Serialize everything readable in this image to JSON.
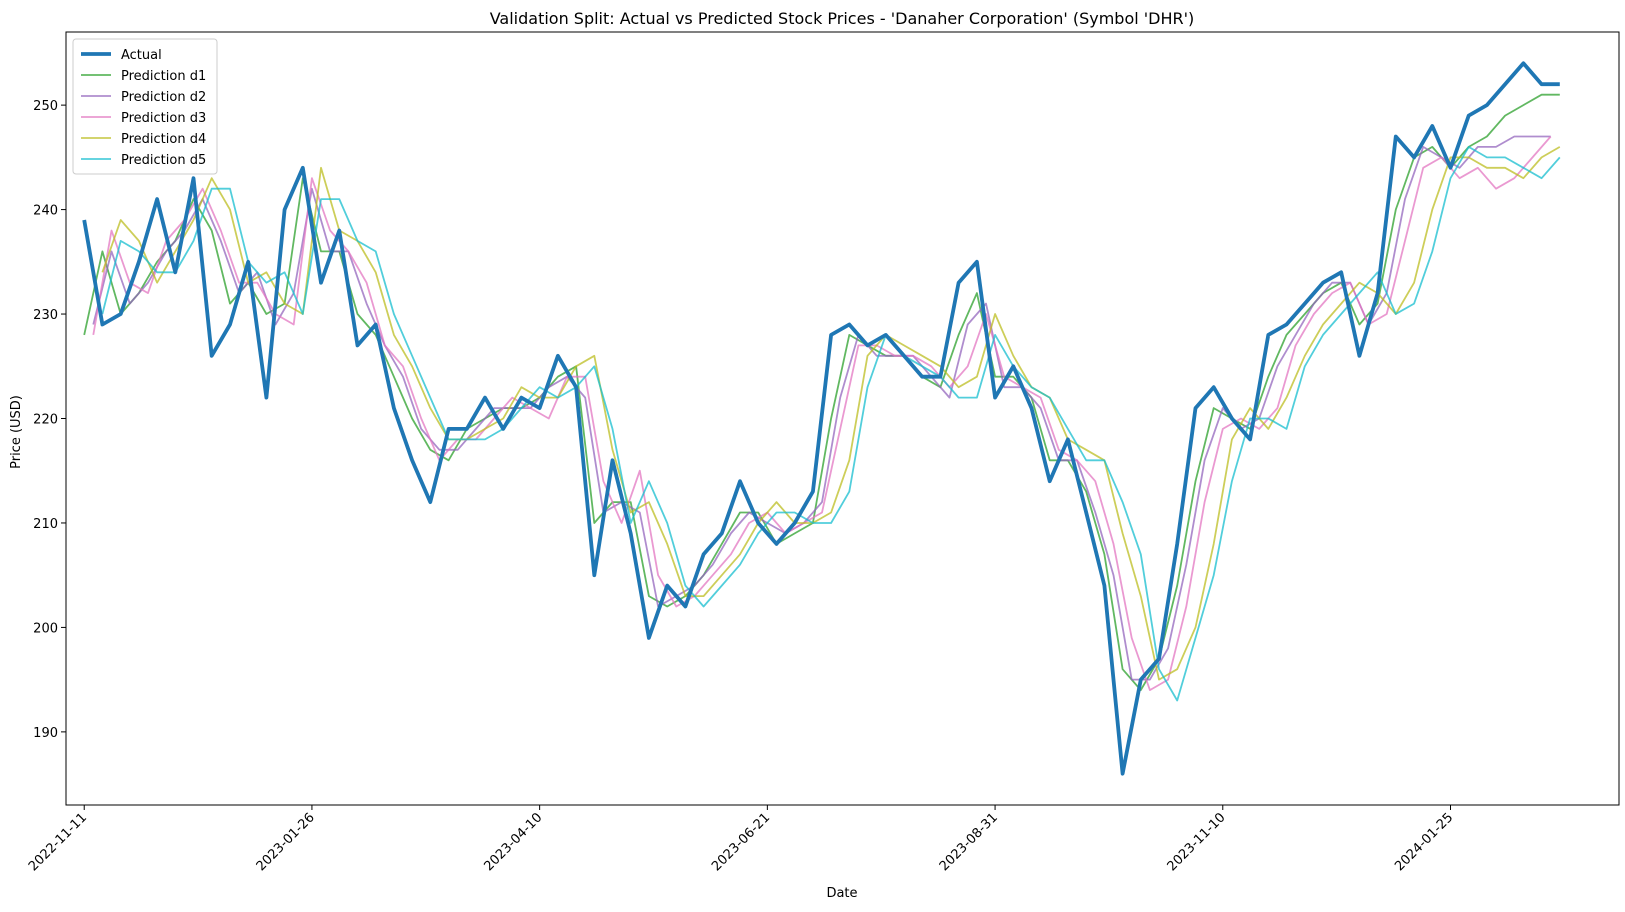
{
  "chart_data": {
    "type": "line",
    "title": "Validation Split: Actual vs Predicted Stock Prices - 'Danaher Corporation' (Symbol 'DHR')",
    "xlabel": "Date",
    "ylabel": "Price (USD)",
    "x_ticks": [
      "2022-11-11",
      "2023-01-26",
      "2023-04-10",
      "2023-06-21",
      "2023-08-31",
      "2023-11-10",
      "2024-01-25"
    ],
    "x_tick_index": [
      0,
      50,
      100,
      150,
      200,
      250,
      300
    ],
    "y_ticks": [
      190,
      200,
      210,
      220,
      230,
      240,
      250
    ],
    "xlim": [
      -4,
      337
    ],
    "ylim": [
      183,
      257
    ],
    "grid": false,
    "legend_position": "upper-left",
    "colors": {
      "Actual": "#1f77b4",
      "Prediction d1": "#2ca02c",
      "Prediction d2": "#9467bd",
      "Prediction d3": "#e377c2",
      "Prediction d4": "#bcbd22",
      "Prediction d5": "#17becf"
    },
    "series": [
      {
        "name": "Actual",
        "x": [
          0,
          4,
          8,
          12,
          16,
          20,
          24,
          28,
          32,
          36,
          40,
          44,
          48,
          52,
          56,
          60,
          64,
          68,
          72,
          76,
          80,
          84,
          88,
          92,
          96,
          100,
          104,
          108,
          112,
          116,
          120,
          124,
          128,
          132,
          136,
          140,
          144,
          148,
          152,
          156,
          160,
          164,
          168,
          172,
          176,
          180,
          184,
          188,
          192,
          196,
          200,
          204,
          208,
          212,
          216,
          220,
          224,
          228,
          232,
          236,
          240,
          244,
          248,
          252,
          256,
          260,
          264,
          268,
          272,
          276,
          280,
          284,
          288,
          292,
          296,
          300,
          304,
          308,
          312,
          316,
          320,
          324
        ],
        "y": [
          239,
          229,
          230,
          235,
          241,
          234,
          243,
          226,
          229,
          235,
          222,
          240,
          244,
          233,
          238,
          227,
          229,
          221,
          216,
          212,
          219,
          219,
          222,
          219,
          222,
          221,
          226,
          223,
          205,
          216,
          209,
          199,
          204,
          202,
          207,
          209,
          214,
          210,
          208,
          210,
          213,
          228,
          229,
          227,
          228,
          226,
          224,
          224,
          233,
          235,
          222,
          225,
          221,
          214,
          218,
          211,
          204,
          186,
          195,
          197,
          208,
          221,
          223,
          220,
          218,
          228,
          229,
          231,
          233,
          234,
          226,
          232,
          247,
          245,
          248,
          244,
          249,
          250,
          252,
          254,
          252,
          252
        ]
      },
      {
        "name": "Prediction d1",
        "x": [
          0,
          4,
          8,
          12,
          16,
          20,
          24,
          28,
          32,
          36,
          40,
          44,
          48,
          52,
          56,
          60,
          64,
          68,
          72,
          76,
          80,
          84,
          88,
          92,
          96,
          100,
          104,
          108,
          112,
          116,
          120,
          124,
          128,
          132,
          136,
          140,
          144,
          148,
          152,
          156,
          160,
          164,
          168,
          172,
          176,
          180,
          184,
          188,
          192,
          196,
          200,
          204,
          208,
          212,
          216,
          220,
          224,
          228,
          232,
          236,
          240,
          244,
          248,
          252,
          256,
          260,
          264,
          268,
          272,
          276,
          280,
          284,
          288,
          292,
          296,
          300,
          304,
          308,
          312,
          316,
          320,
          324
        ],
        "y": [
          228,
          236,
          230,
          232,
          235,
          237,
          241,
          238,
          231,
          233,
          230,
          231,
          243,
          236,
          236,
          230,
          228,
          224,
          220,
          217,
          216,
          219,
          220,
          221,
          221,
          222,
          224,
          225,
          210,
          212,
          212,
          203,
          202,
          203,
          205,
          208,
          211,
          211,
          208,
          209,
          210,
          220,
          228,
          227,
          226,
          226,
          224,
          223,
          228,
          232,
          224,
          224,
          222,
          216,
          216,
          213,
          207,
          196,
          194,
          197,
          204,
          214,
          221,
          220,
          219,
          224,
          228,
          230,
          232,
          233,
          229,
          231,
          240,
          245,
          246,
          244,
          246,
          247,
          249,
          250,
          251,
          251
        ]
      },
      {
        "name": "Prediction d2",
        "x": [
          2,
          6,
          10,
          14,
          18,
          22,
          26,
          30,
          34,
          38,
          42,
          46,
          50,
          54,
          58,
          62,
          66,
          70,
          74,
          78,
          82,
          86,
          90,
          94,
          98,
          102,
          106,
          110,
          114,
          118,
          122,
          126,
          130,
          134,
          138,
          142,
          146,
          150,
          154,
          158,
          162,
          166,
          170,
          174,
          178,
          182,
          186,
          190,
          194,
          198,
          202,
          206,
          210,
          214,
          218,
          222,
          226,
          230,
          234,
          238,
          242,
          246,
          250,
          254,
          258,
          262,
          266,
          270,
          274,
          278,
          282,
          286,
          290,
          294,
          298,
          302,
          306,
          310,
          314,
          318,
          322
        ],
        "y": [
          229,
          236,
          231,
          233,
          236,
          238,
          241,
          237,
          232,
          234,
          229,
          232,
          242,
          236,
          236,
          231,
          227,
          224,
          219,
          217,
          217,
          219,
          221,
          221,
          221,
          223,
          224,
          222,
          211,
          212,
          211,
          202,
          203,
          204,
          206,
          209,
          211,
          210,
          209,
          210,
          212,
          222,
          228,
          226,
          226,
          226,
          224,
          222,
          229,
          231,
          223,
          223,
          221,
          216,
          216,
          211,
          205,
          195,
          195,
          198,
          206,
          216,
          221,
          219,
          220,
          225,
          228,
          231,
          233,
          233,
          229,
          232,
          241,
          246,
          245,
          244,
          246,
          246,
          247,
          247,
          247
        ]
      },
      {
        "name": "Prediction d3",
        "x": [
          2,
          6,
          10,
          14,
          18,
          22,
          26,
          30,
          34,
          38,
          42,
          46,
          50,
          54,
          58,
          62,
          66,
          70,
          74,
          78,
          82,
          86,
          90,
          94,
          98,
          102,
          106,
          110,
          114,
          118,
          122,
          126,
          130,
          134,
          138,
          142,
          146,
          150,
          154,
          158,
          162,
          166,
          170,
          174,
          178,
          182,
          186,
          190,
          194,
          198,
          202,
          206,
          210,
          214,
          218,
          222,
          226,
          230,
          234,
          238,
          242,
          246,
          250,
          254,
          258,
          262,
          266,
          270,
          274,
          278,
          282,
          286,
          290,
          294,
          298,
          302,
          306,
          310,
          314,
          318,
          322
        ],
        "y": [
          228,
          238,
          233,
          232,
          237,
          239,
          242,
          238,
          233,
          233,
          230,
          229,
          243,
          238,
          236,
          233,
          227,
          225,
          220,
          216,
          218,
          218,
          220,
          222,
          221,
          220,
          224,
          224,
          214,
          210,
          215,
          205,
          202,
          203,
          205,
          207,
          210,
          211,
          209,
          210,
          211,
          219,
          227,
          227,
          226,
          226,
          225,
          223,
          225,
          230,
          224,
          223,
          222,
          217,
          216,
          214,
          208,
          199,
          194,
          195,
          202,
          212,
          219,
          220,
          219,
          221,
          227,
          230,
          232,
          233,
          229,
          230,
          237,
          244,
          245,
          243,
          244,
          242,
          243,
          245,
          247
        ]
      },
      {
        "name": "Prediction d4",
        "x": [
          4,
          8,
          12,
          16,
          20,
          24,
          28,
          32,
          36,
          40,
          44,
          48,
          52,
          56,
          60,
          64,
          68,
          72,
          76,
          80,
          84,
          88,
          92,
          96,
          100,
          104,
          108,
          112,
          116,
          120,
          124,
          128,
          132,
          136,
          140,
          144,
          148,
          152,
          156,
          160,
          164,
          168,
          172,
          176,
          180,
          184,
          188,
          192,
          196,
          200,
          204,
          208,
          212,
          216,
          220,
          224,
          228,
          232,
          236,
          240,
          244,
          248,
          252,
          256,
          260,
          264,
          268,
          272,
          276,
          280,
          284,
          288,
          292,
          296,
          300,
          304,
          308,
          312,
          316,
          320,
          324
        ],
        "y": [
          234,
          239,
          237,
          233,
          236,
          239,
          243,
          240,
          233,
          234,
          231,
          230,
          244,
          238,
          237,
          234,
          228,
          225,
          221,
          218,
          218,
          219,
          220,
          223,
          222,
          222,
          225,
          226,
          217,
          211,
          212,
          208,
          203,
          203,
          205,
          207,
          210,
          212,
          210,
          210,
          211,
          216,
          226,
          228,
          227,
          226,
          225,
          223,
          224,
          230,
          226,
          223,
          222,
          218,
          217,
          216,
          209,
          203,
          195,
          196,
          200,
          208,
          218,
          221,
          219,
          222,
          226,
          229,
          231,
          233,
          232,
          230,
          233,
          240,
          245,
          245,
          244,
          244,
          243,
          245,
          246
        ]
      },
      {
        "name": "Prediction d5",
        "x": [
          4,
          8,
          12,
          16,
          20,
          24,
          28,
          32,
          36,
          40,
          44,
          48,
          52,
          56,
          60,
          64,
          68,
          72,
          76,
          80,
          84,
          88,
          92,
          96,
          100,
          104,
          108,
          112,
          116,
          120,
          124,
          128,
          132,
          136,
          140,
          144,
          148,
          152,
          156,
          160,
          164,
          168,
          172,
          176,
          180,
          184,
          188,
          192,
          196,
          200,
          204,
          208,
          212,
          216,
          220,
          224,
          228,
          232,
          236,
          240,
          244,
          248,
          252,
          256,
          260,
          264,
          268,
          272,
          276,
          280,
          284,
          288,
          292,
          296,
          300,
          304,
          308,
          312,
          316,
          320,
          324
        ],
        "y": [
          230,
          237,
          236,
          234,
          234,
          237,
          242,
          242,
          235,
          233,
          234,
          230,
          241,
          241,
          237,
          236,
          230,
          226,
          222,
          218,
          218,
          218,
          219,
          221,
          223,
          222,
          223,
          225,
          219,
          210,
          214,
          210,
          204,
          202,
          204,
          206,
          209,
          211,
          211,
          210,
          210,
          213,
          223,
          228,
          226,
          225,
          224,
          222,
          222,
          228,
          225,
          223,
          222,
          219,
          216,
          216,
          212,
          207,
          196,
          193,
          199,
          205,
          214,
          220,
          220,
          219,
          225,
          228,
          230,
          232,
          234,
          230,
          231,
          236,
          243,
          246,
          245,
          245,
          244,
          243,
          245
        ]
      }
    ]
  }
}
